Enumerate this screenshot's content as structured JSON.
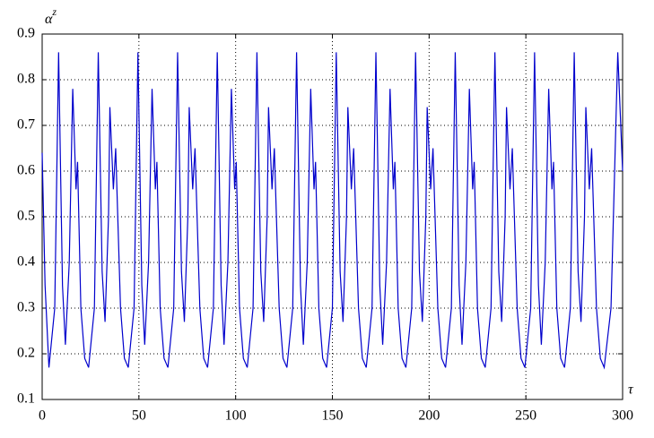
{
  "chart_data": {
    "type": "line",
    "xlabel": "τ",
    "ylabel": "α",
    "ylabel_sup": "z",
    "xlim": [
      0,
      300
    ],
    "xticks": [
      0,
      50,
      100,
      150,
      200,
      250,
      300
    ],
    "ylim": [
      0.1,
      0.9
    ],
    "yticks": [
      0.1,
      0.2,
      0.3,
      0.4,
      0.5,
      0.6,
      0.7,
      0.8,
      0.9
    ],
    "grid": true,
    "series": [
      {
        "color": "#0000cc",
        "x": [
          0,
          1.5,
          3.5,
          6.5,
          8.5,
          10.5,
          12,
          14,
          15.8,
          17.5,
          18.3,
          20,
          22,
          24,
          27,
          29,
          31,
          32.5,
          34.3,
          35,
          36.8,
          38,
          40.5,
          42.5,
          44.5,
          47.5,
          49.5,
          51.5,
          53,
          55,
          56.8,
          58.5,
          59.3,
          61,
          63,
          65,
          68,
          70,
          72,
          73.5,
          75.3,
          76,
          77.8,
          79,
          81.5,
          83.5,
          85.5,
          88.5,
          90.5,
          92.5,
          94,
          96,
          97.8,
          99.5,
          100.3,
          102,
          104,
          106,
          109,
          111,
          113,
          114.5,
          116.3,
          117,
          118.8,
          120,
          122.5,
          124.5,
          126.5,
          129.5,
          131.5,
          133.5,
          135,
          137,
          138.8,
          140.5,
          141.3,
          143,
          145,
          147,
          150,
          152,
          154,
          155.5,
          157.3,
          158,
          159.8,
          161,
          163.5,
          165.5,
          167.5,
          170.5,
          172.5,
          174.5,
          176,
          178,
          179.8,
          181.5,
          182.3,
          184,
          186,
          188,
          191,
          193,
          195,
          196.5,
          198.3,
          199,
          200.8,
          202,
          204.5,
          206.5,
          208.5,
          211.5,
          213.5,
          215.5,
          217,
          219,
          220.8,
          222.5,
          223.3,
          225,
          227,
          229,
          232,
          234,
          236,
          237.5,
          239.3,
          240,
          241.8,
          243,
          245.5,
          247.5,
          249.5,
          252.5,
          254.5,
          256.5,
          258,
          260,
          261.8,
          263.5,
          264.3,
          266,
          268,
          270,
          273,
          275,
          277,
          278.5,
          280.3,
          281,
          282.8,
          284,
          286.5,
          288.5,
          290.5,
          294,
          297.5,
          300
        ],
        "values": [
          0.64,
          0.35,
          0.17,
          0.3,
          0.86,
          0.35,
          0.22,
          0.4,
          0.78,
          0.56,
          0.62,
          0.3,
          0.19,
          0.17,
          0.3,
          0.86,
          0.38,
          0.27,
          0.5,
          0.74,
          0.56,
          0.65,
          0.3,
          0.19,
          0.17,
          0.3,
          0.86,
          0.35,
          0.22,
          0.4,
          0.78,
          0.56,
          0.62,
          0.3,
          0.19,
          0.17,
          0.3,
          0.86,
          0.38,
          0.27,
          0.5,
          0.74,
          0.56,
          0.65,
          0.3,
          0.19,
          0.17,
          0.3,
          0.86,
          0.35,
          0.22,
          0.4,
          0.78,
          0.56,
          0.62,
          0.3,
          0.19,
          0.17,
          0.3,
          0.86,
          0.38,
          0.27,
          0.5,
          0.74,
          0.56,
          0.65,
          0.3,
          0.19,
          0.17,
          0.3,
          0.86,
          0.35,
          0.22,
          0.4,
          0.78,
          0.56,
          0.62,
          0.3,
          0.19,
          0.17,
          0.3,
          0.86,
          0.38,
          0.27,
          0.5,
          0.74,
          0.56,
          0.65,
          0.3,
          0.19,
          0.17,
          0.3,
          0.86,
          0.35,
          0.22,
          0.4,
          0.78,
          0.56,
          0.62,
          0.3,
          0.19,
          0.17,
          0.3,
          0.86,
          0.38,
          0.27,
          0.5,
          0.74,
          0.56,
          0.65,
          0.3,
          0.19,
          0.17,
          0.3,
          0.86,
          0.35,
          0.22,
          0.4,
          0.78,
          0.56,
          0.62,
          0.3,
          0.19,
          0.17,
          0.3,
          0.86,
          0.38,
          0.27,
          0.5,
          0.74,
          0.56,
          0.65,
          0.3,
          0.19,
          0.17,
          0.3,
          0.86,
          0.35,
          0.22,
          0.4,
          0.78,
          0.56,
          0.62,
          0.3,
          0.19,
          0.17,
          0.3,
          0.86,
          0.38,
          0.27,
          0.5,
          0.74,
          0.56,
          0.65,
          0.3,
          0.19,
          0.17,
          0.3,
          0.86,
          0.6
        ]
      }
    ]
  }
}
